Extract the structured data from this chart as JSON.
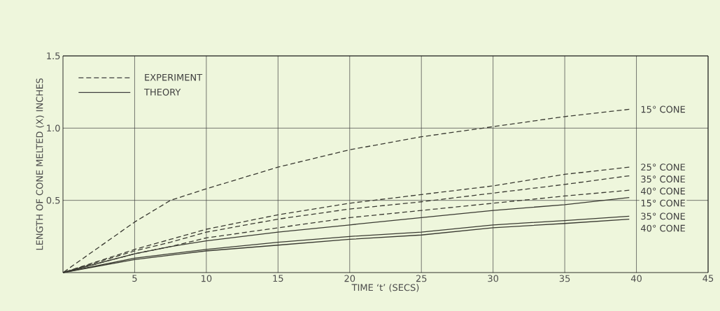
{
  "chart_data": {
    "type": "line",
    "xlabel": "TIME  ‘t’  (SECS)",
    "ylabel": "LENGTH OF CONE MELTED (X) INCHES",
    "xlim": [
      0,
      45
    ],
    "ylim": [
      0,
      1.5
    ],
    "xticks": [
      5,
      10,
      15,
      20,
      25,
      30,
      35,
      40,
      45
    ],
    "yticks": [
      {
        "value": 0.5,
        "label": "0.5"
      },
      {
        "value": 1.0,
        "label": "1.0"
      },
      {
        "value": 1.5,
        "label": "1.5"
      }
    ],
    "grid": true,
    "annotations": [
      "EXPERIMENT",
      "THEORY"
    ],
    "x": [
      0,
      5,
      7.5,
      10,
      15,
      20,
      25,
      30,
      35,
      39.5
    ],
    "series": [
      {
        "name": "15° CONE",
        "color": "#3a3a32",
        "line_style": "dashed",
        "values": [
          0,
          0.35,
          0.5,
          0.58,
          0.73,
          0.85,
          0.94,
          1.01,
          1.08,
          1.13
        ]
      },
      {
        "name": "25° CONE",
        "color": "#3a3a32",
        "line_style": "dashed",
        "values": [
          0,
          0.16,
          0.23,
          0.3,
          0.4,
          0.48,
          0.54,
          0.6,
          0.68,
          0.73
        ]
      },
      {
        "name": "35° CONE",
        "color": "#3a3a32",
        "line_style": "dashed",
        "values": [
          0,
          0.15,
          0.21,
          0.28,
          0.37,
          0.44,
          0.49,
          0.55,
          0.61,
          0.67
        ]
      },
      {
        "name": "40° CONE",
        "color": "#3a3a32",
        "line_style": "dashed",
        "values": [
          0,
          0.13,
          0.18,
          0.24,
          0.31,
          0.38,
          0.43,
          0.48,
          0.53,
          0.57
        ]
      },
      {
        "name": "15° CONE",
        "color": "#3a3a32",
        "line_style": "solid",
        "values": [
          0,
          0.13,
          0.18,
          0.22,
          0.28,
          0.33,
          0.38,
          0.43,
          0.47,
          0.52
        ]
      },
      {
        "name": "35° CONE",
        "color": "#3a3a32",
        "line_style": "solid",
        "values": [
          0,
          0.1,
          0.13,
          0.16,
          0.21,
          0.25,
          0.28,
          0.33,
          0.36,
          0.39
        ]
      },
      {
        "name": "40° CONE",
        "color": "#3a3a32",
        "line_style": "solid",
        "values": [
          0,
          0.09,
          0.12,
          0.15,
          0.19,
          0.23,
          0.26,
          0.31,
          0.34,
          0.37
        ]
      }
    ]
  }
}
